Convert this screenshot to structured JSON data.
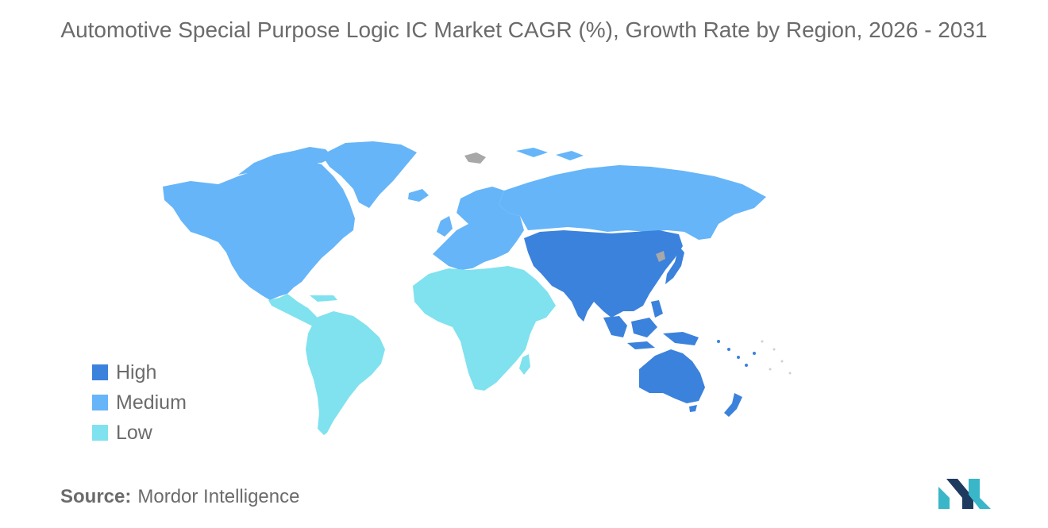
{
  "title": "Automotive Special Purpose Logic IC Market CAGR (%), Growth Rate by Region, 2026 - 2031",
  "legend": [
    {
      "label": "High",
      "color": "#3b82dc"
    },
    {
      "label": "Medium",
      "color": "#66b5f8"
    },
    {
      "label": "Low",
      "color": "#7fe2ee"
    }
  ],
  "colors": {
    "high": "#3b82dc",
    "medium": "#66b5f8",
    "low": "#7fe2ee",
    "no_data": "#a8a8a8",
    "logo_dark": "#1e3a5f",
    "logo_teal": "#39b6c8"
  },
  "regions": {
    "north_america": "medium",
    "greenland": "medium",
    "europe": "medium",
    "russia": "medium",
    "latin_america": "low",
    "middle_east_africa": "low",
    "asia_pacific": "high",
    "oceania": "high"
  },
  "source": {
    "label": "Source:",
    "value": "Mordor Intelligence"
  }
}
